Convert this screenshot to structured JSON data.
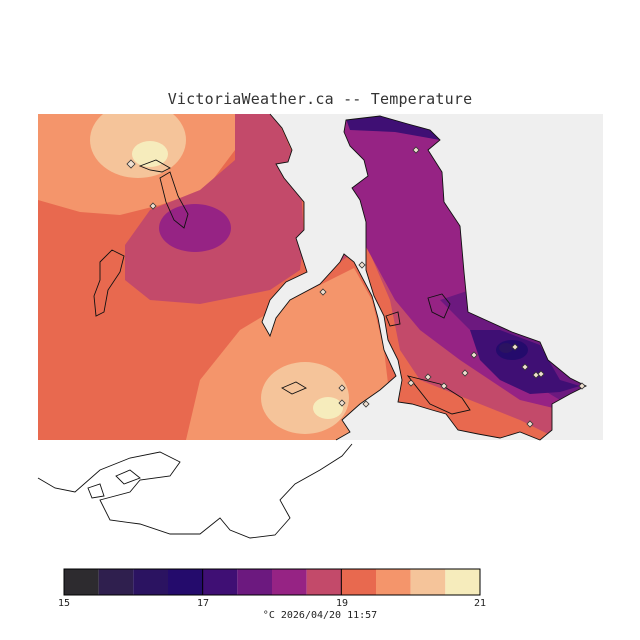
{
  "title": "VictoriaWeather.ca -- Temperature",
  "legend": {
    "colors": [
      "#2d2b2f",
      "#2f1f4e",
      "#2b1361",
      "#240b6c",
      "#3f0f74",
      "#6c197f",
      "#962384",
      "#c34a6a",
      "#e8694f",
      "#f4956b",
      "#f5c49a",
      "#f6ecbc"
    ],
    "ticks": [
      "15",
      "17",
      "19",
      "21"
    ]
  },
  "footer": {
    "unit": "°C",
    "timestamp": "2026/04/20 11:57"
  }
}
